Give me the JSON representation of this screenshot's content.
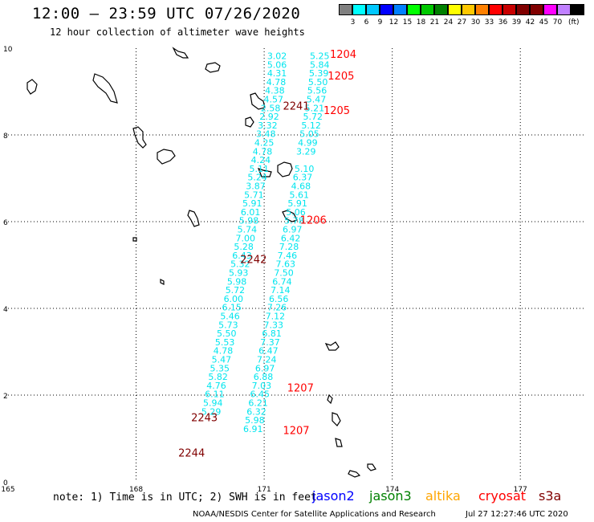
{
  "header": {
    "title": "12:00 – 23:59 UTC 07/26/2020",
    "subtitle": "12 hour collection of altimeter wave heights"
  },
  "colorbar": {
    "colors": [
      "#808080",
      "#00ffff",
      "#00c8ff",
      "#0000ff",
      "#0080ff",
      "#00ff00",
      "#00c800",
      "#008000",
      "#ffff00",
      "#ffc800",
      "#ff8000",
      "#ff0000",
      "#c80000",
      "#800000",
      "#800000",
      "#ff00ff",
      "#c080ff",
      "#000000"
    ],
    "labels": [
      "3",
      "6",
      "9",
      "12",
      "15",
      "18",
      "21",
      "24",
      "27",
      "30",
      "33",
      "36",
      "39",
      "42",
      "45",
      "70"
    ],
    "unit": "(ft)"
  },
  "axes": {
    "x_ticks": [
      "165",
      "168",
      "171",
      "174",
      "177"
    ],
    "y_ticks": [
      "0",
      "2",
      "4",
      "6",
      "8",
      "10"
    ],
    "xlim": [
      165,
      178.5
    ],
    "ylim": [
      0,
      10
    ]
  },
  "tracks": {
    "cyan": "#00e5ee",
    "jason3_color": "#00e5ee",
    "track_a": [
      {
        "lon": 171.3,
        "lat": 9.75,
        "v": "3.02"
      },
      {
        "lon": 171.3,
        "lat": 9.55,
        "v": "5.06"
      },
      {
        "lon": 171.3,
        "lat": 9.35,
        "v": "4.31"
      },
      {
        "lon": 171.28,
        "lat": 9.15,
        "v": "4.78"
      },
      {
        "lon": 171.25,
        "lat": 8.95,
        "v": "4.38"
      },
      {
        "lon": 171.22,
        "lat": 8.75,
        "v": "4.57"
      },
      {
        "lon": 171.15,
        "lat": 8.55,
        "v": "2.58"
      },
      {
        "lon": 171.12,
        "lat": 8.35,
        "v": "2.92"
      },
      {
        "lon": 171.08,
        "lat": 8.15,
        "v": "3.32"
      },
      {
        "lon": 171.04,
        "lat": 7.95,
        "v": "3.48"
      },
      {
        "lon": 171.0,
        "lat": 7.75,
        "v": "4.25"
      },
      {
        "lon": 170.96,
        "lat": 7.55,
        "v": "4.78"
      },
      {
        "lon": 170.92,
        "lat": 7.35,
        "v": "4.24"
      },
      {
        "lon": 170.88,
        "lat": 7.15,
        "v": "5.11"
      },
      {
        "lon": 170.84,
        "lat": 6.95,
        "v": "5.24"
      },
      {
        "lon": 170.8,
        "lat": 6.75,
        "v": "3.87"
      },
      {
        "lon": 170.76,
        "lat": 6.55,
        "v": "5.71"
      },
      {
        "lon": 170.72,
        "lat": 6.35,
        "v": "5.91"
      },
      {
        "lon": 170.68,
        "lat": 6.15,
        "v": "6.01"
      },
      {
        "lon": 170.64,
        "lat": 5.95,
        "v": "5.98"
      },
      {
        "lon": 170.6,
        "lat": 5.75,
        "v": "5.74"
      },
      {
        "lon": 170.56,
        "lat": 5.55,
        "v": "7.00"
      },
      {
        "lon": 170.52,
        "lat": 5.35,
        "v": "5.28"
      },
      {
        "lon": 170.48,
        "lat": 5.15,
        "v": "6.43"
      },
      {
        "lon": 170.44,
        "lat": 4.95,
        "v": "5.32"
      },
      {
        "lon": 170.4,
        "lat": 4.75,
        "v": "5.93"
      },
      {
        "lon": 170.36,
        "lat": 4.55,
        "v": "5.98"
      },
      {
        "lon": 170.32,
        "lat": 4.35,
        "v": "5.72"
      },
      {
        "lon": 170.28,
        "lat": 4.15,
        "v": "6.00"
      },
      {
        "lon": 170.24,
        "lat": 3.95,
        "v": "6.15"
      },
      {
        "lon": 170.2,
        "lat": 3.75,
        "v": "5.46"
      },
      {
        "lon": 170.16,
        "lat": 3.55,
        "v": "5.73"
      },
      {
        "lon": 170.12,
        "lat": 3.35,
        "v": "5.50"
      },
      {
        "lon": 170.08,
        "lat": 3.15,
        "v": "5.53"
      },
      {
        "lon": 170.04,
        "lat": 2.95,
        "v": "4.78"
      },
      {
        "lon": 170.0,
        "lat": 2.75,
        "v": "5.47"
      },
      {
        "lon": 169.96,
        "lat": 2.55,
        "v": "5.35"
      },
      {
        "lon": 169.92,
        "lat": 2.35,
        "v": "5.82"
      },
      {
        "lon": 169.88,
        "lat": 2.15,
        "v": "4.76"
      },
      {
        "lon": 169.84,
        "lat": 1.95,
        "v": "6.11"
      },
      {
        "lon": 169.8,
        "lat": 1.75,
        "v": "5.94"
      },
      {
        "lon": 169.76,
        "lat": 1.55,
        "v": "5.29"
      }
    ],
    "track_b": [
      {
        "lon": 172.3,
        "lat": 9.75,
        "v": "5.25"
      },
      {
        "lon": 172.3,
        "lat": 9.55,
        "v": "5.84"
      },
      {
        "lon": 172.28,
        "lat": 9.35,
        "v": "5.39"
      },
      {
        "lon": 172.26,
        "lat": 9.15,
        "v": "5.50"
      },
      {
        "lon": 172.24,
        "lat": 8.95,
        "v": "5.56"
      },
      {
        "lon": 172.22,
        "lat": 8.75,
        "v": "5.47"
      },
      {
        "lon": 172.18,
        "lat": 8.55,
        "v": "5.21"
      },
      {
        "lon": 172.14,
        "lat": 8.35,
        "v": "5.72"
      },
      {
        "lon": 172.1,
        "lat": 8.15,
        "v": "5.12"
      },
      {
        "lon": 172.06,
        "lat": 7.95,
        "v": "5.05"
      },
      {
        "lon": 172.02,
        "lat": 7.75,
        "v": "4.99"
      },
      {
        "lon": 171.98,
        "lat": 7.55,
        "v": "3.29"
      },
      {
        "lon": 171.94,
        "lat": 7.15,
        "v": "5.10"
      },
      {
        "lon": 171.9,
        "lat": 6.95,
        "v": "6.37"
      },
      {
        "lon": 171.86,
        "lat": 6.75,
        "v": "4.68"
      },
      {
        "lon": 171.82,
        "lat": 6.55,
        "v": "5.61"
      },
      {
        "lon": 171.78,
        "lat": 6.35,
        "v": "5.91"
      },
      {
        "lon": 171.74,
        "lat": 6.15,
        "v": "5.06"
      },
      {
        "lon": 171.7,
        "lat": 5.95,
        "v": "5.78"
      },
      {
        "lon": 171.66,
        "lat": 5.75,
        "v": "6.97"
      },
      {
        "lon": 171.62,
        "lat": 5.55,
        "v": "6.42"
      },
      {
        "lon": 171.58,
        "lat": 5.35,
        "v": "7.28"
      },
      {
        "lon": 171.54,
        "lat": 5.15,
        "v": "7.46"
      },
      {
        "lon": 171.5,
        "lat": 4.95,
        "v": "7.63"
      },
      {
        "lon": 171.46,
        "lat": 4.75,
        "v": "7.50"
      },
      {
        "lon": 171.42,
        "lat": 4.55,
        "v": "6.74"
      },
      {
        "lon": 171.38,
        "lat": 4.35,
        "v": "7.14"
      },
      {
        "lon": 171.34,
        "lat": 4.15,
        "v": "6.56"
      },
      {
        "lon": 171.3,
        "lat": 3.95,
        "v": "7.26"
      },
      {
        "lon": 171.26,
        "lat": 3.75,
        "v": "7.12"
      },
      {
        "lon": 171.22,
        "lat": 3.55,
        "v": "7.33"
      },
      {
        "lon": 171.18,
        "lat": 3.35,
        "v": "6.81"
      },
      {
        "lon": 171.14,
        "lat": 3.15,
        "v": "7.37"
      },
      {
        "lon": 171.1,
        "lat": 2.95,
        "v": "6.47"
      },
      {
        "lon": 171.06,
        "lat": 2.75,
        "v": "7.24"
      },
      {
        "lon": 171.02,
        "lat": 2.55,
        "v": "6.97"
      },
      {
        "lon": 170.98,
        "lat": 2.35,
        "v": "6.88"
      },
      {
        "lon": 170.94,
        "lat": 2.15,
        "v": "7.03"
      },
      {
        "lon": 170.9,
        "lat": 1.95,
        "v": "6.45"
      },
      {
        "lon": 170.86,
        "lat": 1.75,
        "v": "6.21"
      },
      {
        "lon": 170.82,
        "lat": 1.55,
        "v": "6.32"
      },
      {
        "lon": 170.78,
        "lat": 1.35,
        "v": "5.98"
      },
      {
        "lon": 170.74,
        "lat": 1.15,
        "v": "6.91"
      }
    ]
  },
  "pass_labels": [
    {
      "text": "1204",
      "lon": 172.85,
      "lat": 9.78,
      "color": "#ff0000"
    },
    {
      "text": "1205",
      "lon": 172.8,
      "lat": 9.28,
      "color": "#ff0000"
    },
    {
      "text": "2241",
      "lon": 171.75,
      "lat": 8.58,
      "color": "#800000"
    },
    {
      "text": "1205",
      "lon": 172.7,
      "lat": 8.48,
      "color": "#ff0000"
    },
    {
      "text": "1206",
      "lon": 172.15,
      "lat": 5.95,
      "color": "#ff0000"
    },
    {
      "text": "2242",
      "lon": 170.75,
      "lat": 5.05,
      "color": "#800000"
    },
    {
      "text": "1207",
      "lon": 171.85,
      "lat": 2.08,
      "color": "#ff0000"
    },
    {
      "text": "2243",
      "lon": 169.6,
      "lat": 1.4,
      "color": "#800000"
    },
    {
      "text": "1207",
      "lon": 171.75,
      "lat": 1.1,
      "color": "#ff0000"
    },
    {
      "text": "2244",
      "lon": 169.3,
      "lat": 0.58,
      "color": "#800000"
    }
  ],
  "footer": {
    "note": "note: 1) Time is in UTC; 2) SWH is in feet",
    "legend": [
      {
        "label": "jason2",
        "color": "#0000ff"
      },
      {
        "label": "jason3",
        "color": "#008000"
      },
      {
        "label": "altika",
        "color": "#ffa500"
      },
      {
        "label": "cryosat",
        "color": "#ff0000"
      },
      {
        "label": "s3a",
        "color": "#800000"
      }
    ],
    "credit": "NOAA/NESDIS Center for Satellite Applications and Research",
    "timestamp": "Jul 27 12:27:46 UTC 2020"
  }
}
